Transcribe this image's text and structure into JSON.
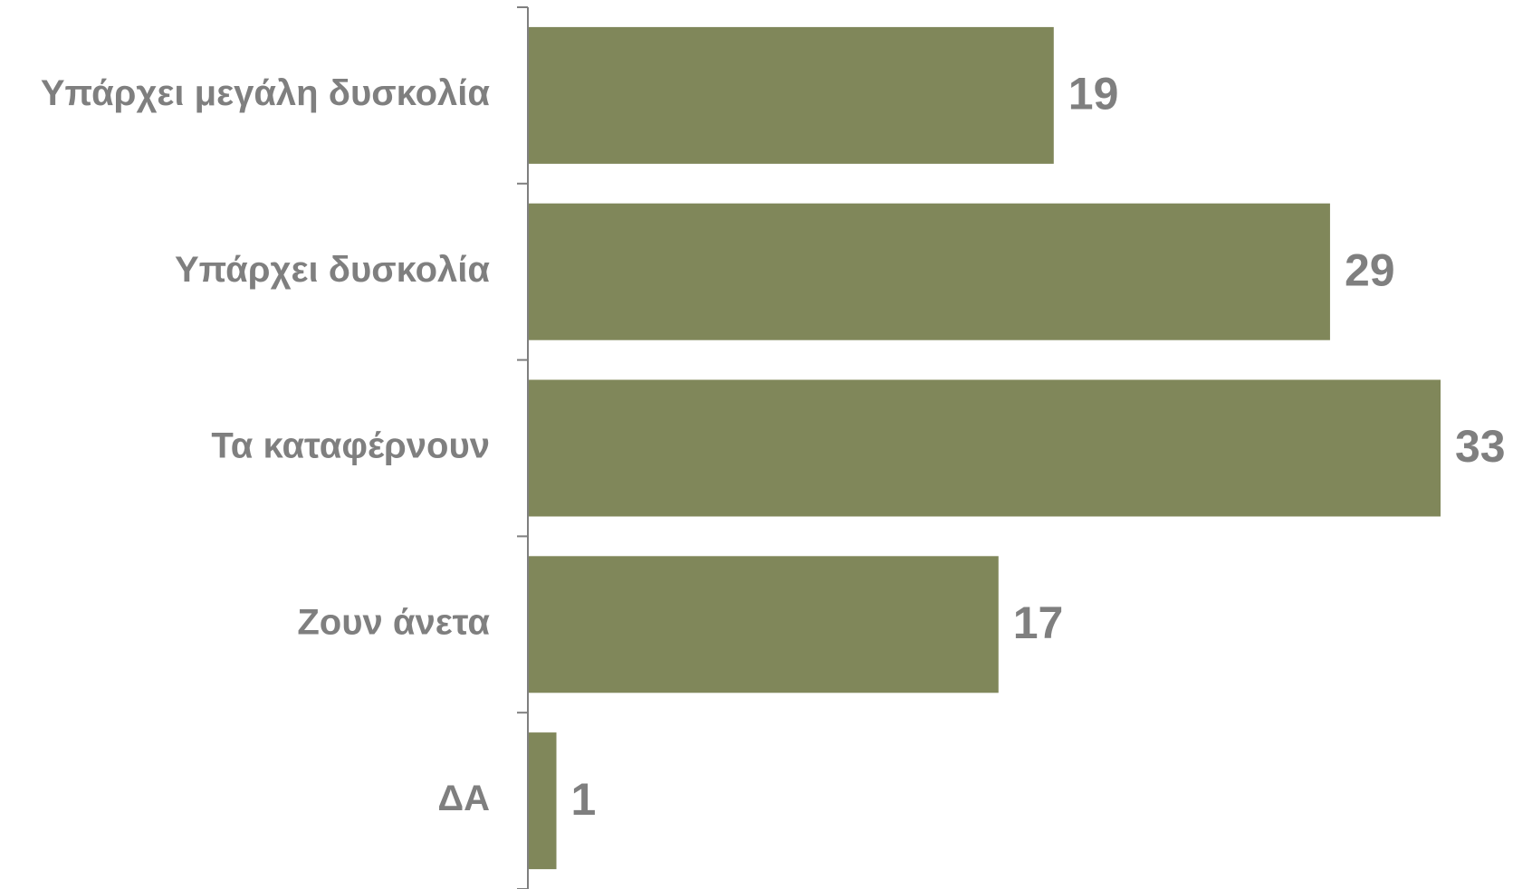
{
  "chart_data": {
    "type": "bar",
    "orientation": "horizontal",
    "categories": [
      "Υπάρχει μεγάλη δυσκολία",
      "Υπάρχει δυσκολία",
      "Τα καταφέρνουν",
      "Ζουν άνετα",
      "ΔΑ"
    ],
    "values": [
      19,
      29,
      33,
      17,
      1
    ],
    "data_labels": [
      "19",
      "29",
      "33",
      "17",
      "1"
    ],
    "title": "",
    "xlabel": "",
    "ylabel": "",
    "xlim": [
      0,
      33
    ],
    "grid": false,
    "legend": "none",
    "colors": {
      "bar": "#80875a",
      "text": "#7f7f7f",
      "axis": "#7f7f7f"
    }
  }
}
